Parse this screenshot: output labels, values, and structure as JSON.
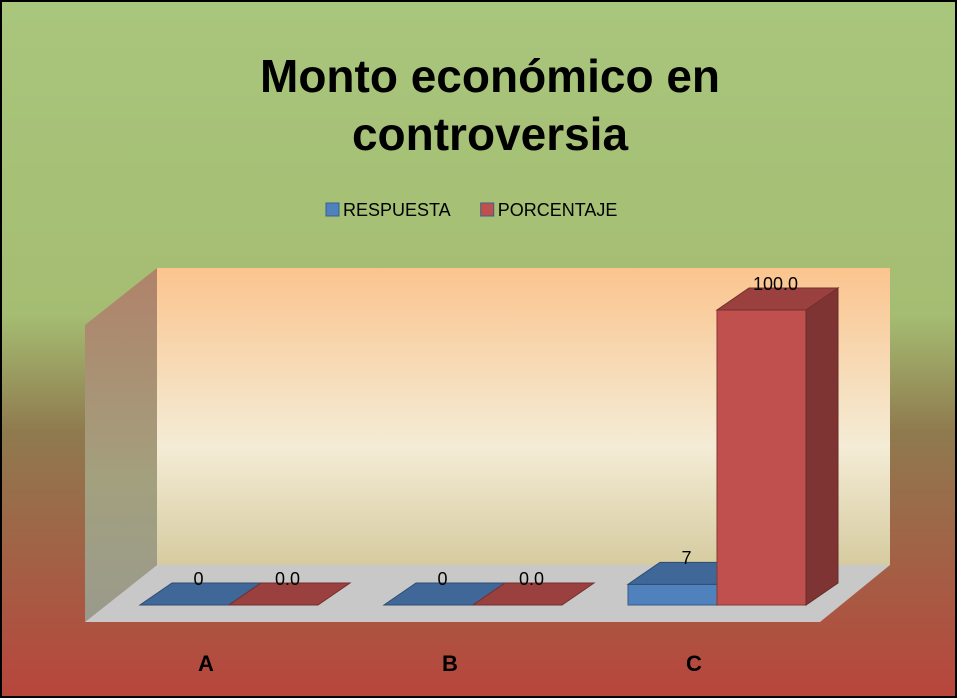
{
  "chart_data": {
    "type": "bar3d",
    "title_lines": [
      "Monto económico en",
      "controversia"
    ],
    "categories": [
      "A",
      "B",
      "C"
    ],
    "series": [
      {
        "name": "RESPUESTA",
        "color": "#4f81bd",
        "values": [
          0,
          0,
          7
        ]
      },
      {
        "name": "PORCENTAJE",
        "color": "#c0504d",
        "values": [
          0,
          0,
          100
        ],
        "value_labels": [
          "0.0",
          "0.0",
          "100.0"
        ]
      }
    ],
    "legend": "top"
  }
}
